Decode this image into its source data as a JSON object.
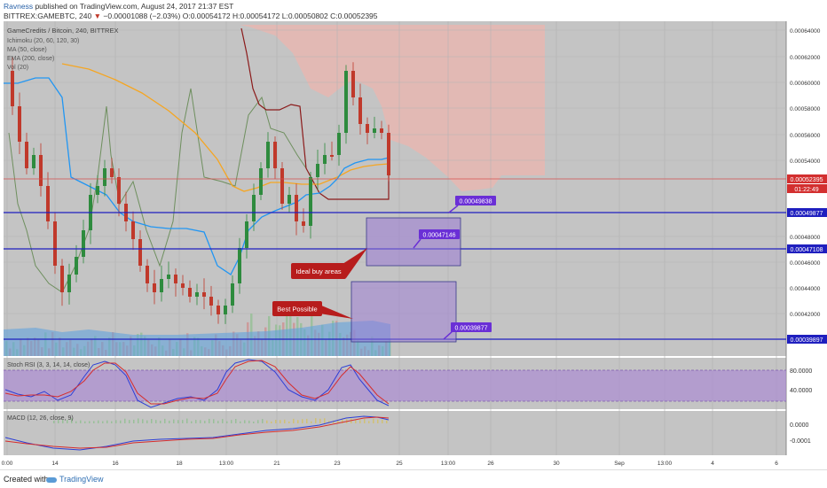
{
  "header": {
    "author": "Ravness",
    "published": "published on TradingView.com, August 24, 2017 21:37 EST",
    "symbol": "BITTREX:GAMEBTC, 240",
    "change_arrow": "▼",
    "change": "−0.00001088 (−2.03%)",
    "ohlc": "O:0.00054172 H:0.00054172 L:0.00050802 C:0.00052395"
  },
  "legend": {
    "title": "GameCredits / Bitcoin, 240, BITTREX",
    "indicators": [
      "Ichimoku (20, 60, 120, 30)",
      "MA (50, close)",
      "EMA (200, close)",
      "Vol (20)"
    ]
  },
  "annotations": {
    "ideal": "Ideal buy areas",
    "best": "Best Possible",
    "price_tag_1": "0.00049838",
    "price_tag_2": "0.00047146",
    "price_tag_3": "0.00039877"
  },
  "price_scale": {
    "ticks": [
      "0.00064000",
      "0.00062000",
      "0.00060000",
      "0.00058000",
      "0.00056000",
      "0.00054000",
      "0.00050000",
      "0.00048000",
      "0.00046000",
      "0.00044000",
      "0.00042000"
    ],
    "last_price": "0.00052395",
    "countdown": "01:22:49",
    "line_labels": [
      "0.00049877",
      "0.00047108",
      "0.00039897"
    ]
  },
  "stoch": {
    "label": "Stoch RSI (3, 3, 14, 14, close)",
    "ticks": [
      "80.0000",
      "40.0000"
    ]
  },
  "macd": {
    "label": "MACD (12, 26, close, 9)",
    "ticks": [
      "0.0000",
      "-0.0001"
    ]
  },
  "time_axis": [
    "0:00",
    "14",
    "15",
    "16",
    "17",
    "18",
    "19",
    "13:00",
    "20",
    "21",
    "22",
    "23",
    "24",
    "25",
    "13:00",
    "26",
    "27",
    "28",
    "29",
    "30",
    "31",
    "Sep",
    "13:00",
    "2",
    "3",
    "4",
    "5",
    "6"
  ],
  "footer": {
    "created": "Created with",
    "brand": "TradingView"
  },
  "colors": {
    "up": "#2e8b3e",
    "down": "#c0392b",
    "ma": "#2196f3",
    "ema": "#f5a623",
    "kumo": "#e8b7b2",
    "hline": "#1f1fbf",
    "tag": "#6a2fd6",
    "callout": "#b71c1c"
  },
  "chart_data": {
    "type": "candlestick",
    "title": "GameCredits / Bitcoin, 240, BITTREX",
    "ylim": [
      0.000392,
      0.000648
    ],
    "x_range": [
      0,
      240
    ],
    "candles": [],
    "horizontal_levels": [
      0.00049877,
      0.00047108,
      0.00039897
    ],
    "last_price": 0.00052395
  }
}
